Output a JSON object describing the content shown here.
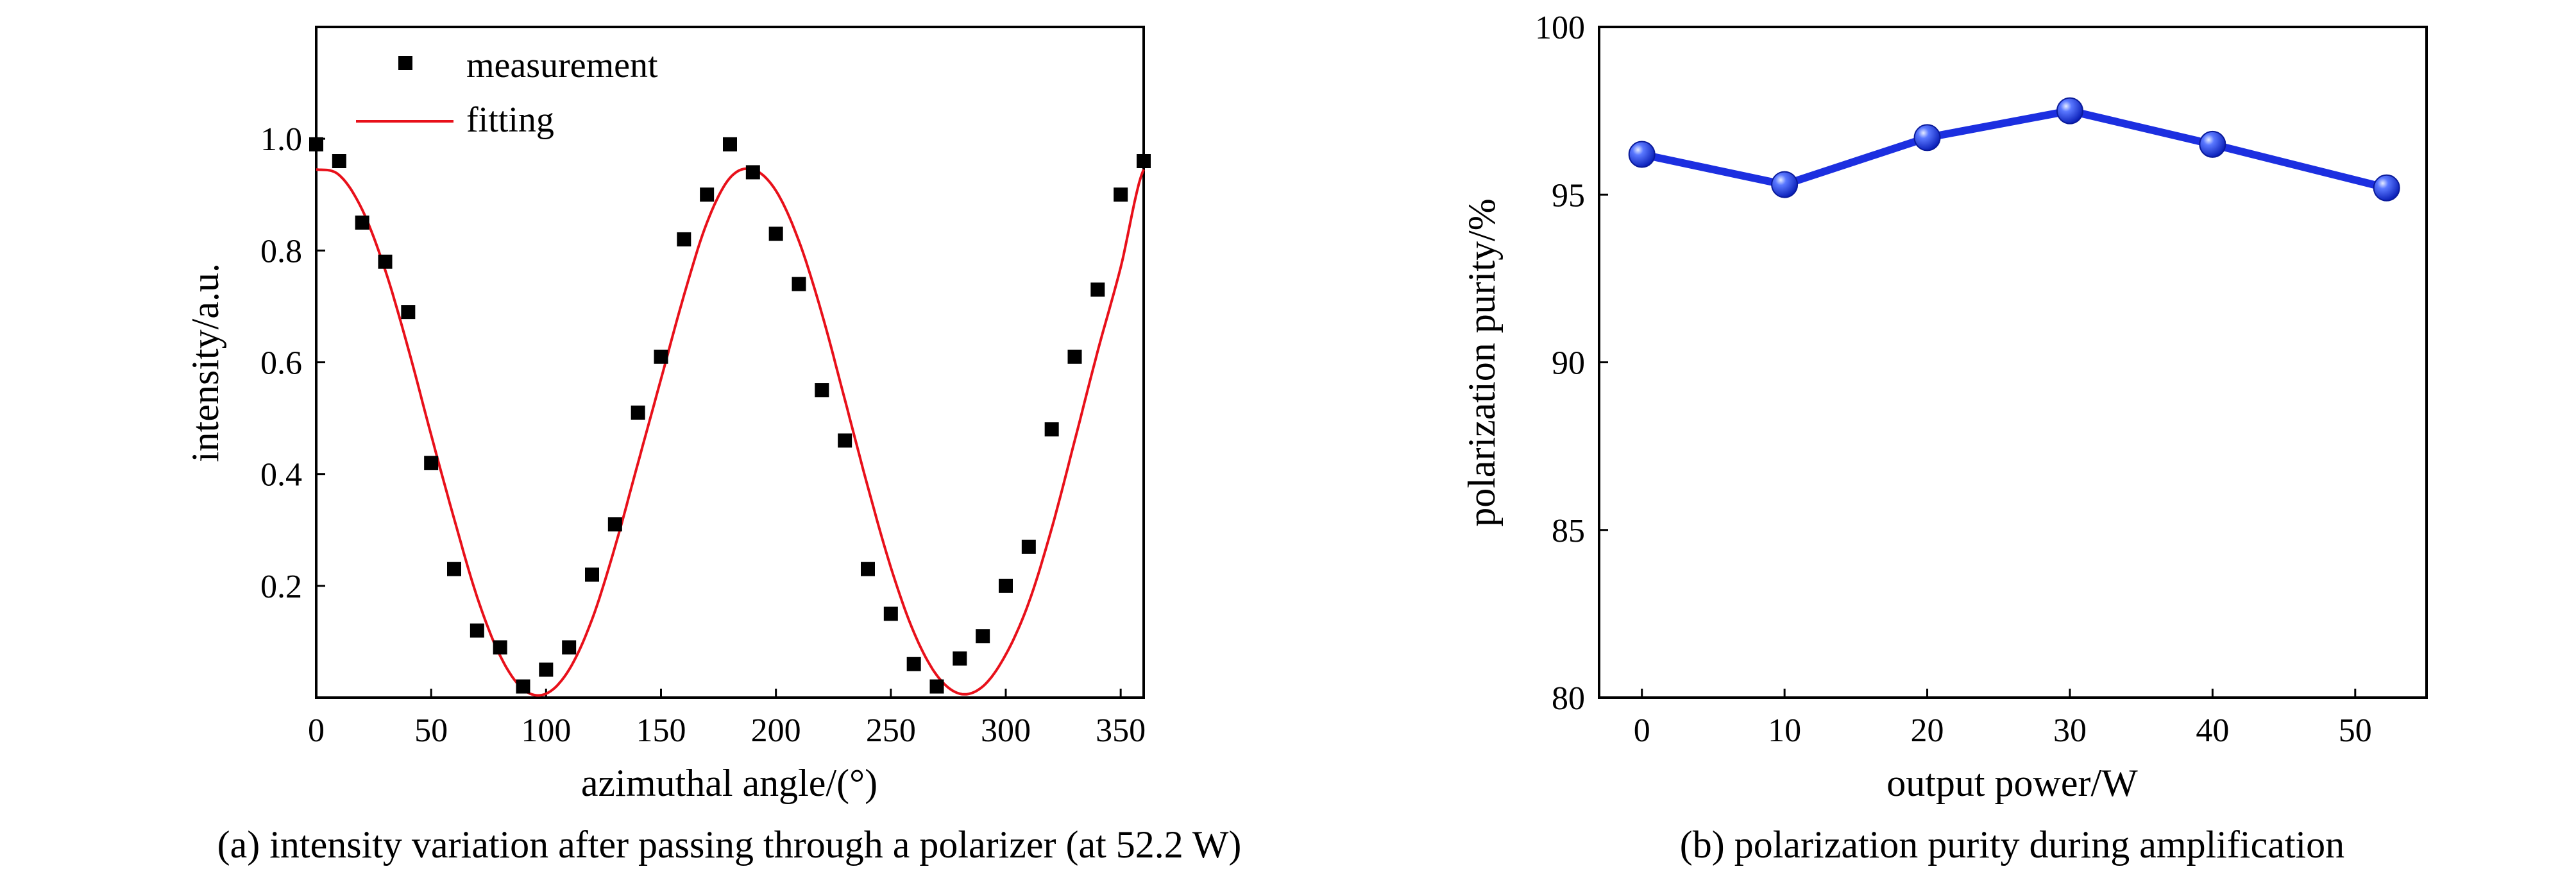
{
  "chart_data": [
    {
      "type": "scatter",
      "caption": "(a) intensity variation after passing through a polarizer (at 52.2 W)",
      "xlabel": "azimuthal angle/(°)",
      "ylabel": "intensity/a.u.",
      "xlim": [
        0,
        360
      ],
      "ylim": [
        0,
        1.2
      ],
      "xticks": [
        0,
        50,
        100,
        150,
        200,
        250,
        300,
        350
      ],
      "yticks": [
        0.2,
        0.4,
        0.6,
        0.8,
        1.0
      ],
      "legend_position": "top-left",
      "colors": {
        "measurement": "#000000",
        "fitting": "#e8101a"
      },
      "series": [
        {
          "name": "measurement",
          "kind": "scatter",
          "marker": "square",
          "x": [
            0,
            10,
            20,
            30,
            40,
            50,
            60,
            70,
            80,
            90,
            100,
            110,
            120,
            130,
            140,
            150,
            160,
            170,
            180,
            190,
            200,
            210,
            220,
            230,
            240,
            250,
            260,
            270,
            280,
            290,
            300,
            310,
            320,
            330,
            340,
            350,
            360
          ],
          "y": [
            0.99,
            0.96,
            0.85,
            0.78,
            0.69,
            0.42,
            0.23,
            0.12,
            0.09,
            0.02,
            0.05,
            0.09,
            0.22,
            0.31,
            0.51,
            0.61,
            0.82,
            0.9,
            0.99,
            0.94,
            0.83,
            0.74,
            0.55,
            0.46,
            0.23,
            0.15,
            0.06,
            0.02,
            0.07,
            0.11,
            0.2,
            0.27,
            0.48,
            0.61,
            0.73,
            0.9,
            0.96
          ]
        },
        {
          "name": "fitting",
          "kind": "line",
          "x": [
            0,
            10,
            20,
            30,
            40,
            50,
            60,
            70,
            80,
            90,
            100,
            110,
            120,
            130,
            140,
            150,
            160,
            170,
            180,
            190,
            200,
            210,
            220,
            230,
            240,
            250,
            260,
            270,
            280,
            290,
            300,
            310,
            320,
            330,
            340,
            350,
            360
          ],
          "y": [
            0.945,
            0.935,
            0.873,
            0.765,
            0.625,
            0.47,
            0.32,
            0.18,
            0.075,
            0.015,
            0.007,
            0.05,
            0.14,
            0.27,
            0.42,
            0.57,
            0.72,
            0.85,
            0.93,
            0.945,
            0.907,
            0.817,
            0.687,
            0.533,
            0.377,
            0.233,
            0.117,
            0.04,
            0.007,
            0.02,
            0.077,
            0.17,
            0.303,
            0.46,
            0.62,
            0.77,
            0.945
          ]
        }
      ]
    },
    {
      "type": "line",
      "caption": "(b) polarization purity during amplification",
      "xlabel": "output power/W",
      "ylabel": "polarization purity/%",
      "xlim": [
        -3,
        55
      ],
      "ylim": [
        80,
        100
      ],
      "xticks": [
        0,
        10,
        20,
        30,
        40,
        50
      ],
      "yticks": [
        80,
        85,
        90,
        95,
        100
      ],
      "colors": {
        "line": "#1c2fe0",
        "marker": "#2b4cf0"
      },
      "series": [
        {
          "x": [
            0,
            10,
            20,
            30,
            40,
            52.2
          ],
          "y": [
            96.2,
            95.3,
            96.7,
            97.5,
            96.5,
            95.2
          ]
        }
      ]
    }
  ]
}
